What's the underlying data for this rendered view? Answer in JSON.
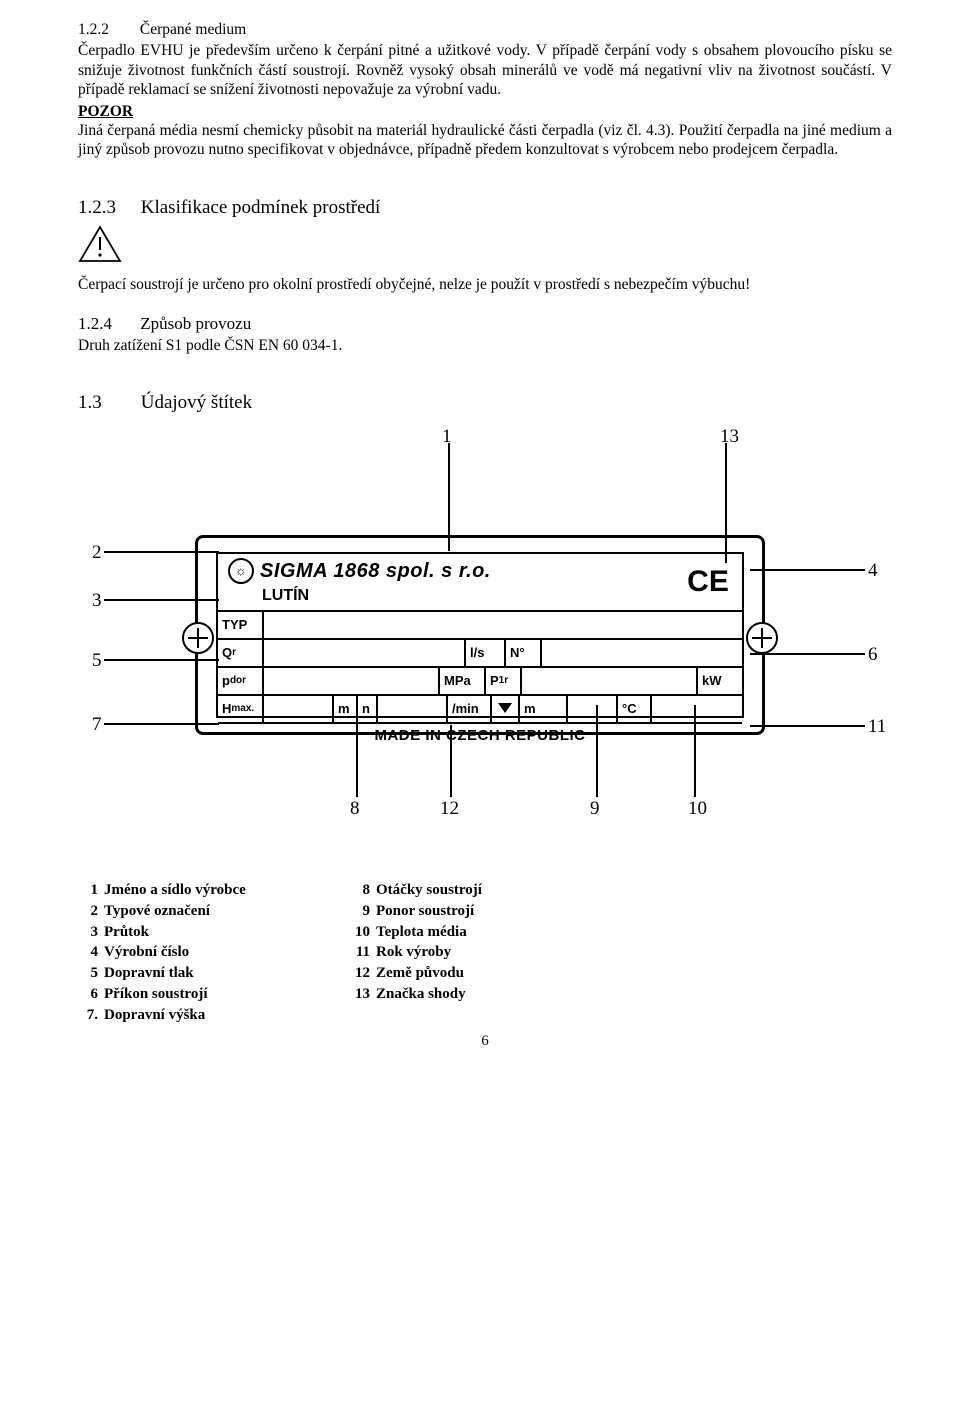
{
  "s122": {
    "num": "1.2.2",
    "title": "Čerpané medium",
    "p1": "Čerpadlo EVHU  je především určeno k čerpání pitné a užitkové vody. V případě čerpání vody s obsahem plovoucího písku se snižuje životnost funkčních částí soustrojí. Rovněž vysoký obsah minerálů ve vodě má negativní vliv na životnost součástí. V případě reklamací se snížení životnosti nepovažuje za výrobní vadu.",
    "pozor": "POZOR",
    "p2": "Jiná čerpaná média nesmí chemicky působit na materiál hydraulické části čerpadla (viz čl. 4.3). Použití čerpadla na jiné medium a jiný způsob provozu nutno specifikovat v objednávce, případně předem konzultovat s výrobcem nebo prodejcem čerpadla."
  },
  "s123": {
    "num": "1.2.3",
    "title": "Klasifikace podmínek prostředí",
    "p1": "Čerpací soustrojí je určeno pro okolní prostředí obyčejné, nelze je použít v prostředí s nebezpečím výbuchu!"
  },
  "s124": {
    "num": "1.2.4",
    "title": "Způsob provozu",
    "p1": "Druh zatížení S1 podle ČSN EN 60 034-1."
  },
  "s13": {
    "num": "1.3",
    "title": "Údajový štítek"
  },
  "plate": {
    "brand": "SIGMA 1868 spol. s r.o.",
    "city": "LUTÍN",
    "typ": "TYP",
    "qr": "Qr",
    "ls": "l/s",
    "n_star": "N°",
    "pdor": "pdor",
    "mpa": "MPa",
    "p1r": "P1r",
    "kw": "kW",
    "hmax": "Hmax.",
    "m": "m",
    "n": "n",
    "permin": "/min",
    "m2": "m",
    "degc": "°C",
    "made": "MADE IN CZECH REPUBLIC",
    "ce": "CE"
  },
  "callouts": {
    "1": "1",
    "2": "2",
    "3": "3",
    "4": "4",
    "5": "5",
    "6": "6",
    "7": "7",
    "8": "8",
    "9": "9",
    "10": "10",
    "11": "11",
    "12": "12",
    "13": "13"
  },
  "legend": [
    {
      "n": "1",
      "t": "Jméno a sídlo výrobce",
      "n2": "8",
      "t2": "Otáčky soustrojí"
    },
    {
      "n": "2",
      "t": "Typové označení",
      "n2": "9",
      "t2": "Ponor soustrojí"
    },
    {
      "n": "3",
      "t": "Průtok",
      "n2": "10",
      "t2": "Teplota média"
    },
    {
      "n": "4",
      "t": "Výrobní číslo",
      "n2": "11",
      "t2": "Rok výroby"
    },
    {
      "n": "5",
      "t": "Dopravní tlak",
      "n2": "12",
      "t2": "Země původu"
    },
    {
      "n": "6",
      "t": "Příkon soustrojí",
      "n2": "13",
      "t2": "Značka shody"
    },
    {
      "n": "7.",
      "t": "Dopravní výška",
      "n2": "",
      "t2": ""
    }
  ],
  "page": "6"
}
